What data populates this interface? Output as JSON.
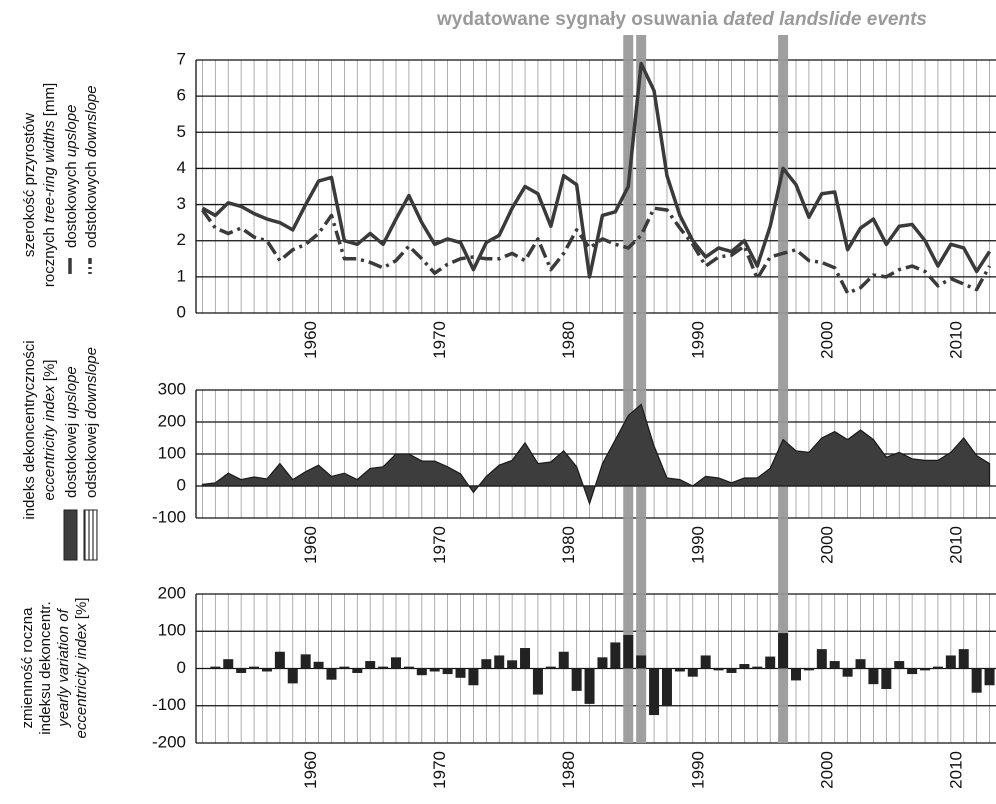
{
  "landslide_events": {
    "title": [
      {
        "text": "wydatowane sygnały osuwania "
      },
      {
        "text": "dated landslide events",
        "italic": true
      }
    ],
    "years": [
      1985,
      1986,
      1997
    ],
    "color": "#9a9a9a"
  },
  "chart_data": [
    {
      "type": "line",
      "ylabel": [
        [
          {
            "text": "szerokość przyrostów"
          }
        ],
        [
          {
            "text": "rocznych "
          },
          {
            "text": "tree-ring widths",
            "italic": true
          },
          {
            "text": " [mm]"
          }
        ]
      ],
      "x": [
        1952,
        1953,
        1954,
        1955,
        1956,
        1957,
        1958,
        1959,
        1960,
        1961,
        1962,
        1963,
        1964,
        1965,
        1966,
        1967,
        1968,
        1969,
        1970,
        1971,
        1972,
        1973,
        1974,
        1975,
        1976,
        1977,
        1978,
        1979,
        1980,
        1981,
        1982,
        1983,
        1984,
        1985,
        1986,
        1987,
        1988,
        1989,
        1990,
        1991,
        1992,
        1993,
        1994,
        1995,
        1996,
        1997,
        1998,
        1999,
        2000,
        2001,
        2002,
        2003,
        2004,
        2005,
        2006,
        2007,
        2008,
        2009,
        2010,
        2011,
        2012,
        2013
      ],
      "xlim": [
        1951.5,
        2013.5
      ],
      "xticks": [
        1960,
        1970,
        1980,
        1990,
        2000,
        2010
      ],
      "ylim": [
        0,
        7
      ],
      "yticks": [
        0,
        1,
        2,
        3,
        4,
        5,
        6,
        7
      ],
      "series": [
        {
          "name": [
            {
              "text": "dostokowych "
            },
            {
              "text": "upslope",
              "italic": true
            }
          ],
          "color": "#3a3a3a",
          "dashed": false,
          "values": [
            2.9,
            2.7,
            3.05,
            2.95,
            2.75,
            2.6,
            2.5,
            2.3,
            3.0,
            3.65,
            3.75,
            2.0,
            1.9,
            2.2,
            1.9,
            2.6,
            3.25,
            2.5,
            1.9,
            2.05,
            1.95,
            1.2,
            1.95,
            2.15,
            2.9,
            3.5,
            3.3,
            2.4,
            3.8,
            3.55,
            1.0,
            2.7,
            2.8,
            3.5,
            6.9,
            6.15,
            3.8,
            2.7,
            2.0,
            1.55,
            1.8,
            1.7,
            2.0,
            1.3,
            2.4,
            4.0,
            3.55,
            2.65,
            3.3,
            3.35,
            1.75,
            2.35,
            2.6,
            1.9,
            2.4,
            2.45,
            2.0,
            1.3,
            1.9,
            1.8,
            1.15,
            1.7
          ]
        },
        {
          "name": [
            {
              "text": "odstokowych "
            },
            {
              "text": "downslope",
              "italic": true
            }
          ],
          "color": "#3a3a3a",
          "dashed": true,
          "values": [
            2.85,
            2.35,
            2.2,
            2.35,
            2.1,
            2.0,
            1.45,
            1.75,
            1.9,
            2.2,
            2.7,
            1.5,
            1.5,
            1.4,
            1.25,
            1.45,
            1.85,
            1.5,
            1.1,
            1.35,
            1.5,
            1.55,
            1.5,
            1.5,
            1.65,
            1.45,
            2.05,
            1.2,
            1.65,
            2.3,
            1.8,
            2.05,
            1.9,
            1.8,
            2.15,
            2.9,
            2.85,
            2.35,
            1.9,
            1.3,
            1.55,
            1.6,
            1.85,
            0.95,
            1.55,
            1.65,
            1.75,
            1.45,
            1.4,
            1.25,
            0.55,
            0.7,
            1.05,
            1.0,
            1.2,
            1.3,
            1.15,
            0.75,
            0.95,
            0.8,
            0.65,
            1.3
          ]
        }
      ]
    },
    {
      "type": "area",
      "ylabel": [
        [
          {
            "text": "indeks dekoncentryczności"
          }
        ],
        [
          {
            "text": "eccentricity index",
            "italic": true
          },
          {
            "text": " [%]"
          }
        ]
      ],
      "x": [
        1952,
        1953,
        1954,
        1955,
        1956,
        1957,
        1958,
        1959,
        1960,
        1961,
        1962,
        1963,
        1964,
        1965,
        1966,
        1967,
        1968,
        1969,
        1970,
        1971,
        1972,
        1973,
        1974,
        1975,
        1976,
        1977,
        1978,
        1979,
        1980,
        1981,
        1982,
        1983,
        1984,
        1985,
        1986,
        1987,
        1988,
        1989,
        1990,
        1991,
        1992,
        1993,
        1994,
        1995,
        1996,
        1997,
        1998,
        1999,
        2000,
        2001,
        2002,
        2003,
        2004,
        2005,
        2006,
        2007,
        2008,
        2009,
        2010,
        2011,
        2012,
        2013
      ],
      "xlim": [
        1951.5,
        2013.5
      ],
      "xticks": [
        1960,
        1970,
        1980,
        1990,
        2000,
        2010
      ],
      "ylim": [
        -100,
        300
      ],
      "yticks": [
        -100,
        0,
        100,
        200,
        300
      ],
      "series": [
        {
          "name": [
            {
              "text": "dostokowej "
            },
            {
              "text": "upslope",
              "italic": true
            }
          ],
          "color": "#3d3d3d",
          "values": [
            5,
            10,
            40,
            20,
            28,
            22,
            70,
            20,
            45,
            65,
            30,
            40,
            20,
            55,
            60,
            100,
            100,
            78,
            78,
            60,
            38,
            -20,
            30,
            65,
            80,
            135,
            70,
            75,
            110,
            60,
            -55,
            70,
            145,
            220,
            255,
            125,
            25,
            20,
            0,
            30,
            25,
            10,
            25,
            25,
            55,
            145,
            110,
            105,
            150,
            170,
            145,
            175,
            145,
            90,
            105,
            85,
            80,
            80,
            105,
            150,
            95,
            70
          ]
        },
        {
          "name": [
            {
              "text": "odstokowej "
            },
            {
              "text": "downslope",
              "italic": true
            }
          ],
          "color": "#ffffff",
          "hatched": true
        }
      ]
    },
    {
      "type": "bar",
      "ylabel": [
        [
          {
            "text": "zmienność roczna"
          }
        ],
        [
          {
            "text": "indeksu dekoncentr."
          }
        ],
        [
          {
            "text": "yearly variation of",
            "italic": true
          }
        ],
        [
          {
            "text": "eccentricity index",
            "italic": true
          },
          {
            "text": " [%]"
          }
        ]
      ],
      "x": [
        1952,
        1953,
        1954,
        1955,
        1956,
        1957,
        1958,
        1959,
        1960,
        1961,
        1962,
        1963,
        1964,
        1965,
        1966,
        1967,
        1968,
        1969,
        1970,
        1971,
        1972,
        1973,
        1974,
        1975,
        1976,
        1977,
        1978,
        1979,
        1980,
        1981,
        1982,
        1983,
        1984,
        1985,
        1986,
        1987,
        1988,
        1989,
        1990,
        1991,
        1992,
        1993,
        1994,
        1995,
        1996,
        1997,
        1998,
        1999,
        2000,
        2001,
        2002,
        2003,
        2004,
        2005,
        2006,
        2007,
        2008,
        2009,
        2010,
        2011,
        2012,
        2013
      ],
      "xlim": [
        1951.5,
        2013.5
      ],
      "xticks": [
        1960,
        1970,
        1980,
        1990,
        2000,
        2010
      ],
      "ylim": [
        -200,
        200
      ],
      "yticks": [
        -200,
        -100,
        0,
        100,
        200
      ],
      "color": "#222222",
      "values": [
        null,
        5,
        25,
        -12,
        5,
        -8,
        45,
        -40,
        38,
        18,
        -30,
        5,
        -12,
        20,
        5,
        30,
        5,
        -18,
        -8,
        -15,
        -25,
        -45,
        25,
        35,
        22,
        55,
        -70,
        5,
        45,
        -60,
        -95,
        30,
        70,
        90,
        35,
        -125,
        -100,
        -8,
        -22,
        35,
        -5,
        -12,
        12,
        5,
        32,
        95,
        -32,
        -5,
        52,
        20,
        -22,
        25,
        -42,
        -55,
        20,
        -15,
        -5,
        5,
        35,
        52,
        -65,
        -45
      ]
    }
  ]
}
